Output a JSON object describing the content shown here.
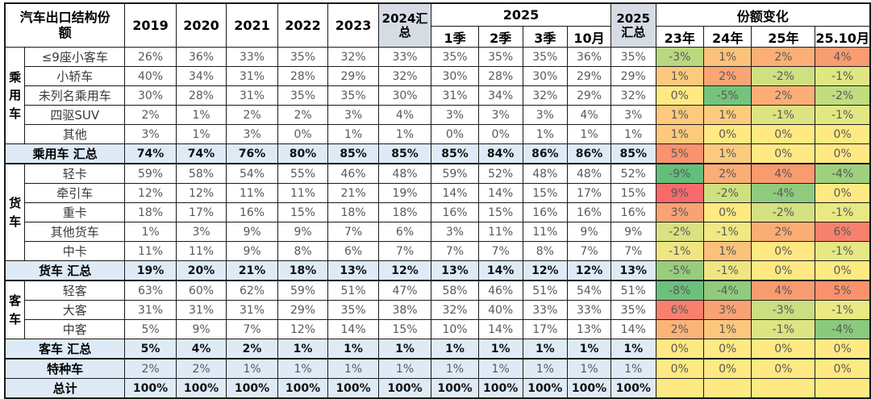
{
  "colors": {
    "summary_row_bg": "#DEEBF7",
    "total_header_bg": "#D6DCE4",
    "grid_border": "#1A1A1A",
    "value_text": "#595959",
    "neutral_yellow": "#FFE983",
    "max_red": "#F8696B",
    "max_green": "#63BE7B"
  },
  "chart_data": {
    "type": "table",
    "title": "汽车出口结构份额",
    "header": {
      "years": [
        "2019",
        "2020",
        "2021",
        "2022",
        "2023"
      ],
      "total_2024": "2024汇总",
      "group_2025": "2025",
      "quarters": [
        "1季",
        "2季",
        "3季",
        "10月"
      ],
      "total_2025": "2025汇总",
      "share_change": "份额变化",
      "change_years": [
        "23年",
        "24年",
        "25年",
        "25.10月"
      ]
    },
    "value_columns": [
      "2019",
      "2020",
      "2021",
      "2022",
      "2023",
      "2024汇总",
      "2025-1季",
      "2025-2季",
      "2025-3季",
      "2025-10月",
      "2025汇总"
    ],
    "groups": [
      {
        "label": "乘用车",
        "start": 0,
        "span": 5
      },
      {
        "label": "货车",
        "start": 6,
        "span": 5
      },
      {
        "label": "客车",
        "start": 12,
        "span": 3
      }
    ],
    "rows": [
      {
        "label": "≤9座小客车",
        "type": "data",
        "values": [
          "26%",
          "36%",
          "33%",
          "35%",
          "32%",
          "33%",
          "35%",
          "35%",
          "35%",
          "36%",
          "35%"
        ],
        "changes": [
          {
            "v": "-3%",
            "bg": "#BAD87F"
          },
          {
            "v": "1%",
            "bg": "#FCC17B"
          },
          {
            "v": "2%",
            "bg": "#FBAF76"
          },
          {
            "v": "4%",
            "bg": "#F99C70"
          }
        ]
      },
      {
        "label": "小轿车",
        "type": "data",
        "values": [
          "40%",
          "34%",
          "31%",
          "28%",
          "29%",
          "32%",
          "30%",
          "28%",
          "30%",
          "29%",
          "29%"
        ],
        "changes": [
          {
            "v": "1%",
            "bg": "#FDCA7D"
          },
          {
            "v": "2%",
            "bg": "#FAA674"
          },
          {
            "v": "-2%",
            "bg": "#CFE081"
          },
          {
            "v": "-1%",
            "bg": "#E0E682"
          }
        ]
      },
      {
        "label": "未列名乘用车",
        "type": "data",
        "values": [
          "30%",
          "28%",
          "31%",
          "35%",
          "35%",
          "30%",
          "31%",
          "34%",
          "32%",
          "29%",
          "32%"
        ],
        "changes": [
          {
            "v": "0%",
            "bg": "#FFE983"
          },
          {
            "v": "-5%",
            "bg": "#76C47C"
          },
          {
            "v": "2%",
            "bg": "#FBAF76"
          },
          {
            "v": "-2%",
            "bg": "#C2DC80"
          }
        ]
      },
      {
        "label": "四驱SUV",
        "type": "data",
        "values": [
          "2%",
          "1%",
          "2%",
          "2%",
          "3%",
          "4%",
          "3%",
          "3%",
          "3%",
          "4%",
          "3%"
        ],
        "changes": [
          {
            "v": "1%",
            "bg": "#FDC97D"
          },
          {
            "v": "1%",
            "bg": "#FDCB7D"
          },
          {
            "v": "-1%",
            "bg": "#DDE482"
          },
          {
            "v": "-1%",
            "bg": "#E2E783"
          }
        ]
      },
      {
        "label": "其他",
        "type": "data",
        "values": [
          "3%",
          "1%",
          "3%",
          "0%",
          "1%",
          "1%",
          "0%",
          "0%",
          "1%",
          "1%",
          "1%"
        ],
        "changes": [
          {
            "v": "1%",
            "bg": "#FDC97D"
          },
          {
            "v": "0%",
            "bg": "#FFE983"
          },
          {
            "v": "0%",
            "bg": "#FFE983"
          },
          {
            "v": "0%",
            "bg": "#FFE983"
          }
        ]
      },
      {
        "label": "乘用车 汇总",
        "type": "summary",
        "sep": true,
        "values": [
          "74%",
          "74%",
          "76%",
          "80%",
          "85%",
          "85%",
          "85%",
          "84%",
          "86%",
          "86%",
          "85%"
        ],
        "changes": [
          {
            "v": "5%",
            "bg": "#F9926D"
          },
          {
            "v": "1%",
            "bg": "#FDCB7D"
          },
          {
            "v": "0%",
            "bg": "#FFE983"
          },
          {
            "v": "0%",
            "bg": "#FFE983"
          }
        ]
      },
      {
        "label": "轻卡",
        "type": "data",
        "values": [
          "59%",
          "58%",
          "54%",
          "55%",
          "46%",
          "48%",
          "59%",
          "52%",
          "48%",
          "48%",
          "52%"
        ],
        "changes": [
          {
            "v": "-9%",
            "bg": "#63BE7B"
          },
          {
            "v": "2%",
            "bg": "#FBAD76"
          },
          {
            "v": "4%",
            "bg": "#F89B6F"
          },
          {
            "v": "-4%",
            "bg": "#9FD07E"
          }
        ]
      },
      {
        "label": "牵引车",
        "type": "data",
        "values": [
          "12%",
          "12%",
          "11%",
          "11%",
          "21%",
          "19%",
          "14%",
          "14%",
          "15%",
          "17%",
          "15%"
        ],
        "changes": [
          {
            "v": "9%",
            "bg": "#F8696B"
          },
          {
            "v": "-2%",
            "bg": "#CFE081"
          },
          {
            "v": "-4%",
            "bg": "#90CB7D"
          },
          {
            "v": "0%",
            "bg": "#FFE983"
          }
        ]
      },
      {
        "label": "重卡",
        "type": "data",
        "values": [
          "18%",
          "17%",
          "16%",
          "15%",
          "18%",
          "18%",
          "16%",
          "15%",
          "16%",
          "16%",
          "16%"
        ],
        "changes": [
          {
            "v": "3%",
            "bg": "#FAA273"
          },
          {
            "v": "0%",
            "bg": "#FFE983"
          },
          {
            "v": "-2%",
            "bg": "#D4E081"
          },
          {
            "v": "-1%",
            "bg": "#E8E983"
          }
        ]
      },
      {
        "label": "其他货车",
        "type": "data",
        "values": [
          "1%",
          "3%",
          "9%",
          "9%",
          "7%",
          "6%",
          "3%",
          "11%",
          "11%",
          "9%",
          "9%"
        ],
        "changes": [
          {
            "v": "-2%",
            "bg": "#D9E182"
          },
          {
            "v": "-1%",
            "bg": "#EFE883"
          },
          {
            "v": "2%",
            "bg": "#FBAD76"
          },
          {
            "v": "6%",
            "bg": "#F8816E"
          }
        ]
      },
      {
        "label": "中卡",
        "type": "data",
        "values": [
          "11%",
          "11%",
          "9%",
          "8%",
          "6%",
          "7%",
          "7%",
          "7%",
          "8%",
          "7%",
          "7%"
        ],
        "changes": [
          {
            "v": "-1%",
            "bg": "#EFE683"
          },
          {
            "v": "1%",
            "bg": "#FCC17B"
          },
          {
            "v": "0%",
            "bg": "#FFE983"
          },
          {
            "v": "-1%",
            "bg": "#E5E883"
          }
        ]
      },
      {
        "label": "货车 汇总",
        "type": "summary",
        "sep": true,
        "values": [
          "19%",
          "20%",
          "21%",
          "18%",
          "13%",
          "12%",
          "13%",
          "14%",
          "12%",
          "12%",
          "13%"
        ],
        "changes": [
          {
            "v": "-5%",
            "bg": "#98CD7E"
          },
          {
            "v": "-1%",
            "bg": "#EFE683"
          },
          {
            "v": "0%",
            "bg": "#FFE983"
          },
          {
            "v": "0%",
            "bg": "#FFE983"
          }
        ]
      },
      {
        "label": "轻客",
        "type": "data",
        "values": [
          "63%",
          "60%",
          "62%",
          "59%",
          "51%",
          "47%",
          "58%",
          "46%",
          "51%",
          "54%",
          "51%"
        ],
        "changes": [
          {
            "v": "-8%",
            "bg": "#6CC07C"
          },
          {
            "v": "-4%",
            "bg": "#90CB7D"
          },
          {
            "v": "4%",
            "bg": "#F89B6F"
          },
          {
            "v": "5%",
            "bg": "#F9926D"
          }
        ]
      },
      {
        "label": "大客",
        "type": "data",
        "values": [
          "31%",
          "31%",
          "31%",
          "29%",
          "35%",
          "38%",
          "32%",
          "40%",
          "33%",
          "33%",
          "35%"
        ],
        "changes": [
          {
            "v": "6%",
            "bg": "#F8816E"
          },
          {
            "v": "3%",
            "bg": "#FAA273"
          },
          {
            "v": "-3%",
            "bg": "#CBDE81"
          },
          {
            "v": "-1%",
            "bg": "#EAE983"
          }
        ]
      },
      {
        "label": "中客",
        "type": "data",
        "values": [
          "5%",
          "9%",
          "7%",
          "12%",
          "14%",
          "15%",
          "10%",
          "14%",
          "17%",
          "13%",
          "14%"
        ],
        "changes": [
          {
            "v": "2%",
            "bg": "#FBB377"
          },
          {
            "v": "1%",
            "bg": "#FCC77C"
          },
          {
            "v": "-1%",
            "bg": "#DDE482"
          },
          {
            "v": "-4%",
            "bg": "#8BC97D"
          }
        ]
      },
      {
        "label": "客车 汇总",
        "type": "summary",
        "sep": true,
        "values": [
          "5%",
          "4%",
          "2%",
          "1%",
          "1%",
          "1%",
          "1%",
          "1%",
          "1%",
          "1%",
          "1%"
        ],
        "changes": [
          {
            "v": "0%",
            "bg": "#FFE983"
          },
          {
            "v": "0%",
            "bg": "#FFE983"
          },
          {
            "v": "0%",
            "bg": "#FFE983"
          },
          {
            "v": "0%",
            "bg": "#FFE983"
          }
        ]
      },
      {
        "label": "特种车",
        "type": "summary2",
        "values": [
          "2%",
          "2%",
          "1%",
          "1%",
          "1%",
          "1%",
          "1%",
          "1%",
          "1%",
          "1%",
          "1%"
        ],
        "changes": [
          {
            "v": "0%",
            "bg": "#FFE983"
          },
          {
            "v": "0%",
            "bg": "#FFE983"
          },
          {
            "v": "0%",
            "bg": "#FFE983"
          },
          {
            "v": "0%",
            "bg": "#FFE983"
          }
        ]
      },
      {
        "label": "总计",
        "type": "summary",
        "values": [
          "100%",
          "100%",
          "100%",
          "100%",
          "100%",
          "100%",
          "100%",
          "100%",
          "100%",
          "100%",
          "100%"
        ],
        "changes": [
          {
            "v": "",
            "bg": "#FFE983"
          },
          {
            "v": "",
            "bg": "#FFE983"
          },
          {
            "v": "",
            "bg": "#FFE983"
          },
          {
            "v": "",
            "bg": "#FFE983"
          }
        ]
      }
    ]
  }
}
